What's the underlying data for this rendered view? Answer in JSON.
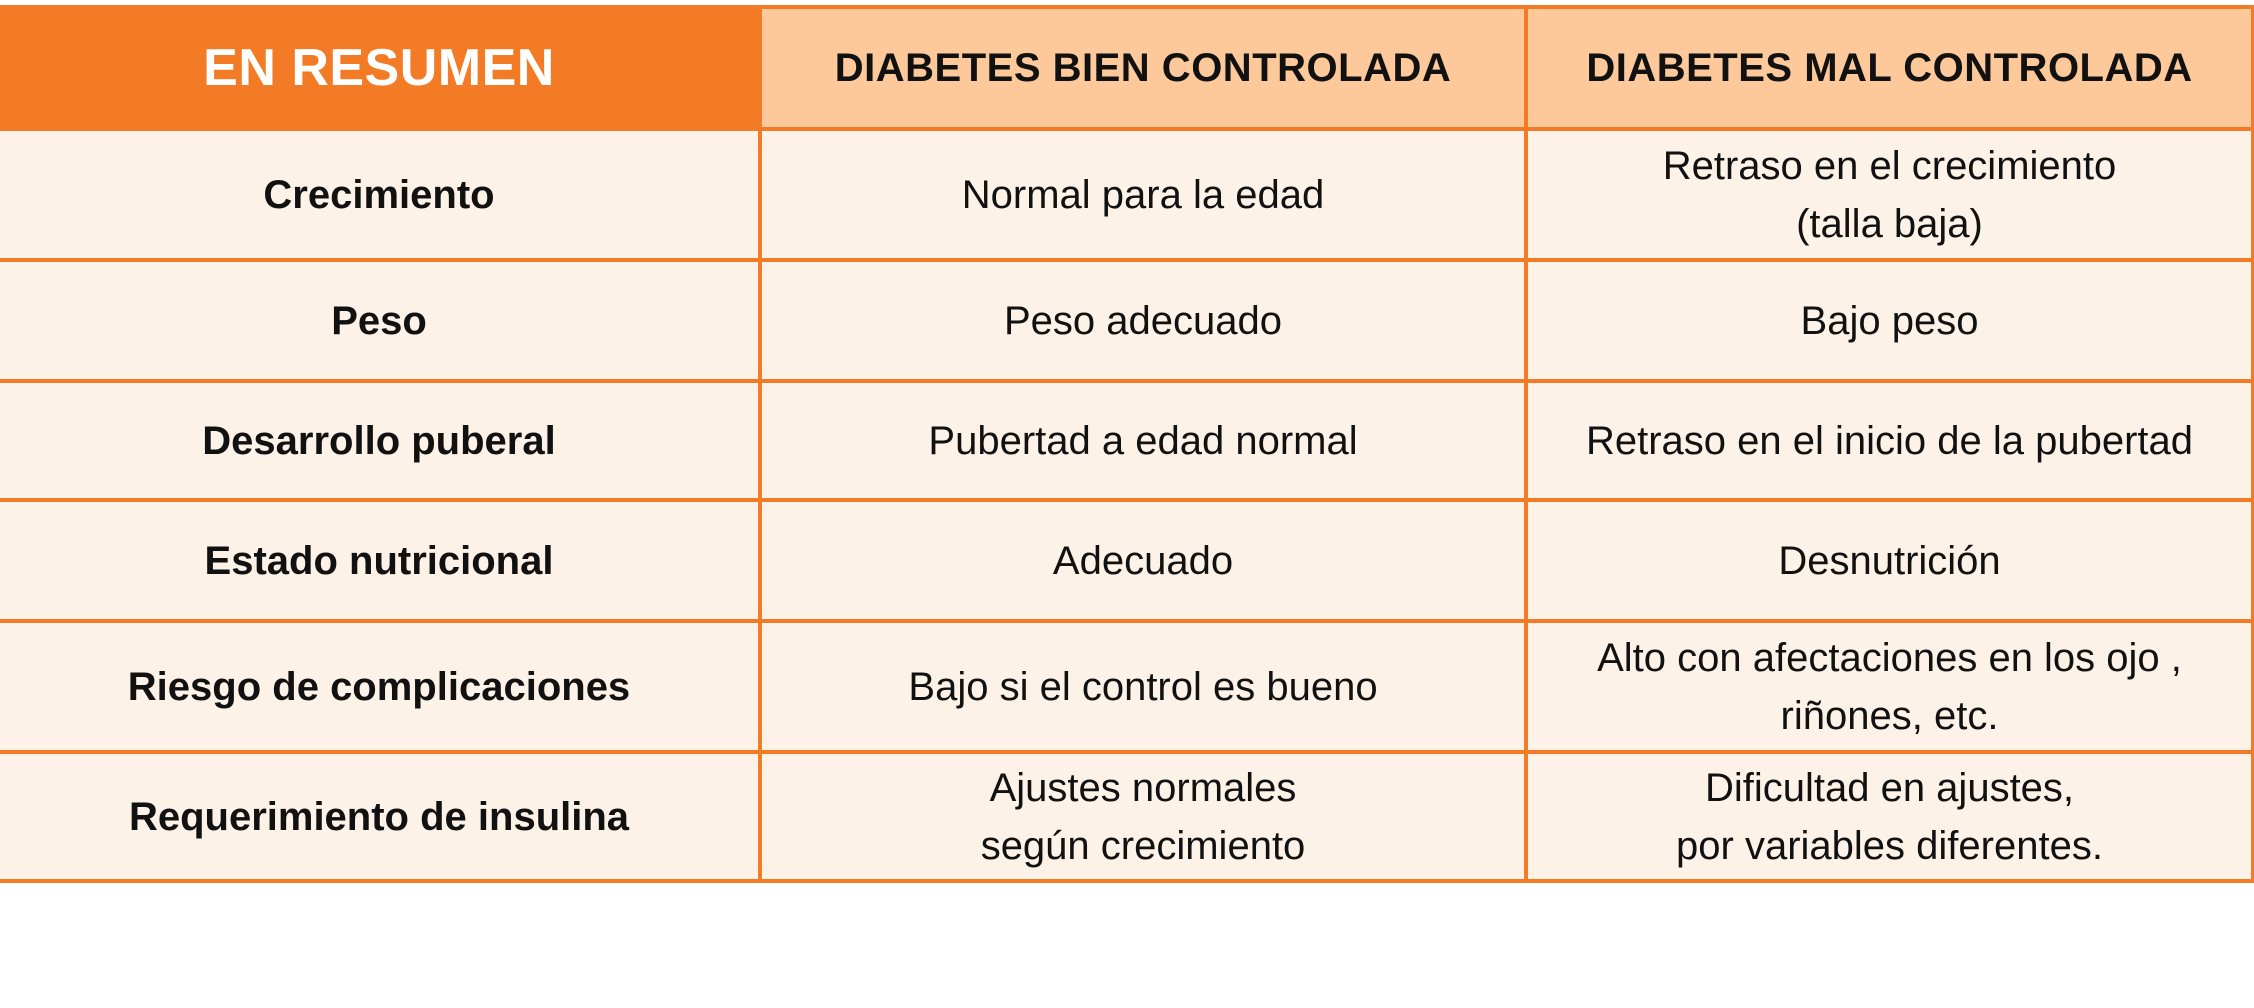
{
  "header": {
    "title": "EN RESUMEN",
    "col_good": "DIABETES BIEN CONTROLADA",
    "col_bad": "DIABETES MAL CONTROLADA"
  },
  "rows": [
    {
      "label": "Crecimiento",
      "good": [
        "Normal para la edad"
      ],
      "bad": [
        "Retraso en el crecimiento",
        "(talla baja)"
      ]
    },
    {
      "label": "Peso",
      "good": [
        "Peso adecuado"
      ],
      "bad": [
        "Bajo peso"
      ]
    },
    {
      "label": "Desarrollo puberal",
      "good": [
        "Pubertad a edad normal"
      ],
      "bad": [
        "Retraso en el inicio de la pubertad"
      ]
    },
    {
      "label": "Estado nutricional",
      "good": [
        "Adecuado"
      ],
      "bad": [
        "Desnutrición"
      ]
    },
    {
      "label": "Riesgo de complicaciones",
      "good": [
        "Bajo si el control es bueno"
      ],
      "bad": [
        "Alto con afectaciones en los ojo ,",
        "riñones, etc."
      ]
    },
    {
      "label": "Requerimiento de insulina",
      "good": [
        "Ajustes normales",
        "según crecimiento"
      ],
      "bad": [
        "Dificultad en ajustes,",
        "por variables diferentes."
      ]
    }
  ],
  "colors": {
    "accent": "#f47b26",
    "header_light": "#fdc99a",
    "cell_bg": "#fdf2e8"
  }
}
